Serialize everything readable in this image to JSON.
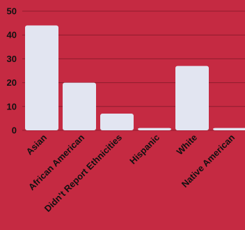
{
  "chart_data": {
    "type": "bar",
    "title": "",
    "xlabel": "",
    "ylabel": "",
    "categories": [
      "Asian",
      "African American",
      "Didn't Report Ethnicities",
      "Hispanic",
      "White",
      "Native American"
    ],
    "values": [
      44,
      20,
      7,
      1,
      27,
      1
    ],
    "ylim": [
      0,
      50
    ],
    "yticks": [
      0,
      10,
      20,
      30,
      40,
      50
    ],
    "grid": true,
    "legend": "none",
    "colors": {
      "background": "#C52A42",
      "bar": "#E2E5F1",
      "gridline": "#8E1C2E",
      "text": "#111111"
    }
  }
}
